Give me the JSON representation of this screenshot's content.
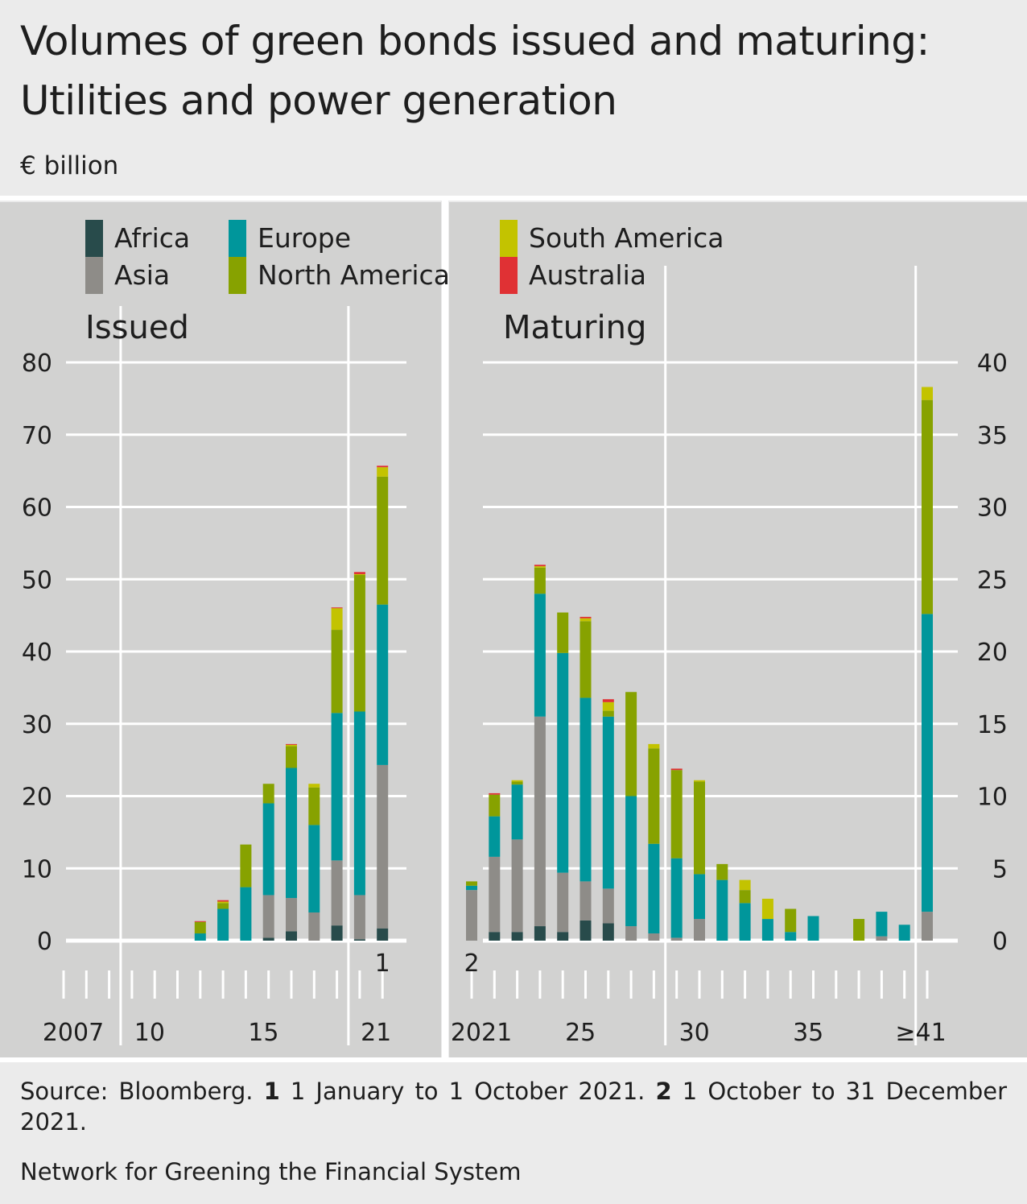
{
  "title": "Volumes of green bonds issued and maturing: Utilities and power generation",
  "unit": "€ billion",
  "legend": [
    {
      "name": "Africa",
      "color": "#284b4b"
    },
    {
      "name": "Asia",
      "color": "#8e8c88"
    },
    {
      "name": "Europe",
      "color": "#00969b"
    },
    {
      "name": "North America",
      "color": "#87a200"
    },
    {
      "name": "South America",
      "color": "#c3c300"
    },
    {
      "name": "Australia",
      "color": "#e03134"
    }
  ],
  "footer": {
    "source": "Source: Bloomberg.",
    "note1_marker": "1",
    "note1": "1 January to 1 October 2021.",
    "note2_marker": "2",
    "note2": "1 October to 31 December 2021.",
    "organization": "Network for Greening the Financial System"
  },
  "chart_data": [
    {
      "type": "bar",
      "stacked": true,
      "title": "Issued",
      "ylabel": "€ billion",
      "ylim": [
        0,
        80
      ],
      "yticks": [
        0,
        10,
        20,
        30,
        40,
        50,
        60,
        70,
        80
      ],
      "y_axis_side": "left",
      "categories": [
        "2007",
        "2008",
        "2009",
        "2010",
        "2011",
        "2012",
        "2013",
        "2014",
        "2015",
        "2016",
        "2017",
        "2018",
        "2019",
        "2020",
        "2021"
      ],
      "xtick_labels": {
        "2007": "2007",
        "2010": "10",
        "2015": "15",
        "2021": "21"
      },
      "footnote_marker": {
        "category": "2021",
        "text": "1"
      },
      "series": [
        {
          "name": "Africa",
          "values": [
            0,
            0,
            0,
            0,
            0,
            0,
            0,
            0,
            0,
            0.4,
            1.3,
            0,
            2.1,
            0.2,
            1.7
          ]
        },
        {
          "name": "Asia",
          "values": [
            0,
            0,
            0,
            0,
            0,
            0,
            0,
            0,
            0,
            5.9,
            4.6,
            3.9,
            9.0,
            6.1,
            22.6
          ]
        },
        {
          "name": "Europe",
          "values": [
            0,
            0,
            0,
            0,
            0,
            0,
            1.0,
            4.4,
            7.4,
            12.7,
            18.0,
            12.1,
            20.4,
            25.4,
            22.2
          ]
        },
        {
          "name": "North America",
          "values": [
            0,
            0,
            0,
            0,
            0,
            0,
            1.6,
            0.8,
            5.9,
            2.7,
            3.0,
            5.2,
            11.5,
            18.9,
            17.7
          ]
        },
        {
          "name": "South America",
          "values": [
            0,
            0,
            0,
            0,
            0,
            0,
            0,
            0.2,
            0,
            0,
            0.2,
            0.5,
            3.0,
            0.1,
            1.3
          ]
        },
        {
          "name": "Australia",
          "values": [
            0,
            0,
            0,
            0,
            0,
            0,
            0.1,
            0.2,
            0,
            0,
            0.1,
            0,
            0.1,
            0.3,
            0.2
          ]
        }
      ]
    },
    {
      "type": "bar",
      "stacked": true,
      "title": "Maturing",
      "ylabel": "€ billion",
      "ylim": [
        0,
        40
      ],
      "yticks": [
        0,
        5,
        10,
        15,
        20,
        25,
        30,
        35,
        40
      ],
      "y_axis_side": "right",
      "categories": [
        "2021",
        "2022",
        "2023",
        "2024",
        "2025",
        "2026",
        "2027",
        "2028",
        "2029",
        "2030",
        "2031",
        "2032",
        "2033",
        "2034",
        "2035",
        "2036",
        "2037",
        "2038",
        "2039",
        "2040",
        "≥41"
      ],
      "xtick_labels": {
        "2021": "2021",
        "2025": "25",
        "2030": "30",
        "2035": "35",
        "≥41": "≥41"
      },
      "footnote_marker": {
        "category": "2021",
        "text": "2"
      },
      "series": [
        {
          "name": "Africa",
          "values": [
            0,
            0.6,
            0.6,
            1.0,
            0.6,
            1.4,
            1.2,
            0,
            0,
            0,
            0,
            0,
            0,
            0,
            0,
            0,
            0,
            0,
            0,
            0,
            0
          ]
        },
        {
          "name": "Asia",
          "values": [
            3.5,
            5.2,
            6.4,
            14.5,
            4.1,
            2.7,
            2.4,
            1.0,
            0.5,
            0.2,
            1.5,
            0,
            0,
            0,
            0,
            0,
            0,
            0,
            0.3,
            0,
            2.0
          ]
        },
        {
          "name": "Europe",
          "values": [
            0.3,
            2.8,
            3.8,
            8.5,
            15.2,
            12.7,
            11.9,
            9.0,
            6.2,
            5.5,
            3.1,
            4.2,
            2.6,
            1.5,
            0.6,
            1.7,
            0,
            0,
            1.7,
            1.1,
            20.6
          ]
        },
        {
          "name": "North America",
          "values": [
            0.3,
            1.5,
            0.2,
            1.8,
            2.8,
            5.3,
            0.4,
            7.2,
            6.6,
            6.1,
            6.4,
            1.1,
            0.9,
            0,
            1.6,
            0,
            0,
            1.5,
            0,
            0,
            14.8
          ]
        },
        {
          "name": "South America",
          "values": [
            0,
            0,
            0.1,
            0.1,
            0,
            0.2,
            0.6,
            0,
            0.3,
            0,
            0.1,
            0,
            0.7,
            1.4,
            0,
            0,
            0,
            0,
            0,
            0,
            0.9
          ]
        },
        {
          "name": "Australia",
          "values": [
            0,
            0.1,
            0,
            0.1,
            0,
            0.1,
            0.2,
            0,
            0,
            0.1,
            0,
            0,
            0,
            0,
            0,
            0,
            0,
            0,
            0,
            0,
            0
          ]
        }
      ]
    }
  ]
}
